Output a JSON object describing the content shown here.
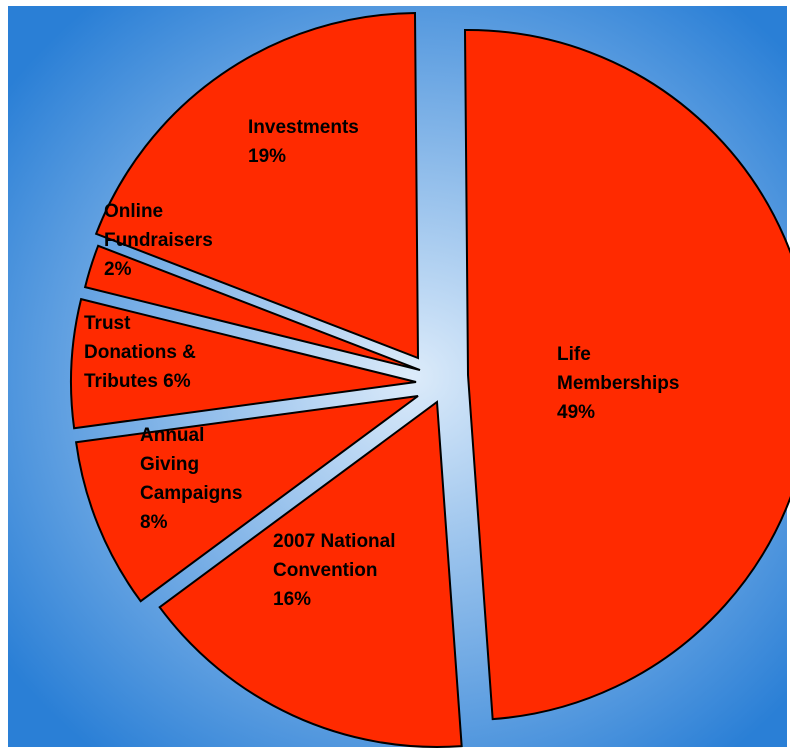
{
  "chart_data": {
    "type": "pie",
    "exploded": true,
    "background": "radial-gradient",
    "slice_color": "#ff2a00",
    "background_colors": {
      "center": "#dcebfa",
      "edge": "#2a7fd6",
      "frame": "#ffffff"
    },
    "slices": [
      {
        "name": "life-memberships",
        "lines": [
          "Life",
          "Memberships",
          "49%"
        ],
        "value": 49
      },
      {
        "name": "2007-national-convention",
        "lines": [
          "2007 National",
          "Convention",
          "16%"
        ],
        "value": 16
      },
      {
        "name": "annual-giving-campaigns",
        "lines": [
          "Annual",
          "Giving",
          "Campaigns",
          "8%"
        ],
        "value": 8
      },
      {
        "name": "trust-donations-tributes",
        "lines": [
          "Trust",
          "Donations &",
          "Tributes  6%"
        ],
        "value": 6
      },
      {
        "name": "online-fundraisers",
        "lines": [
          "Online",
          "Fundraisers",
          "2%"
        ],
        "value": 2
      },
      {
        "name": "investments",
        "lines": [
          "Investments",
          "19%"
        ],
        "value": 19
      }
    ]
  }
}
